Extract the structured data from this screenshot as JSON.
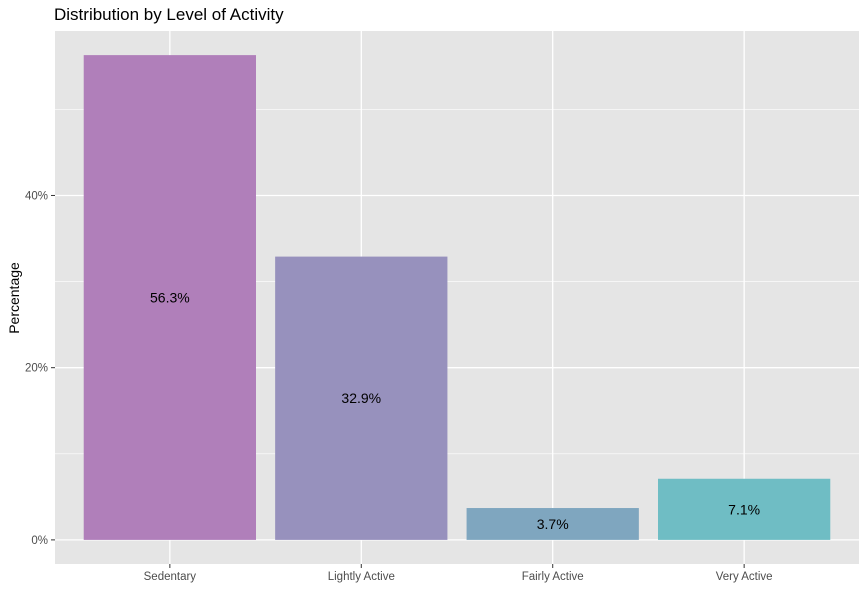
{
  "chart_data": {
    "type": "bar",
    "title": "Distribution by Level of Activity",
    "xlabel": "",
    "ylabel": "Percentage",
    "categories": [
      "Sedentary",
      "Lightly Active",
      "Fairly Active",
      "Very Active"
    ],
    "values": [
      56.3,
      32.9,
      3.7,
      7.1
    ],
    "data_labels": [
      "56.3%",
      "32.9%",
      "3.7%",
      "7.1%"
    ],
    "colors": [
      "#b07fba",
      "#9791bd",
      "#7fa6bf",
      "#6fbdc4"
    ],
    "y_ticks": [
      0,
      20,
      40
    ],
    "y_tick_labels": [
      "0%",
      "20%",
      "40%"
    ],
    "ylim": [
      -2.8,
      59.1
    ],
    "grid": true,
    "legend": "none",
    "panel_background": "#e5e5e5",
    "grid_color": "#ffffff"
  }
}
